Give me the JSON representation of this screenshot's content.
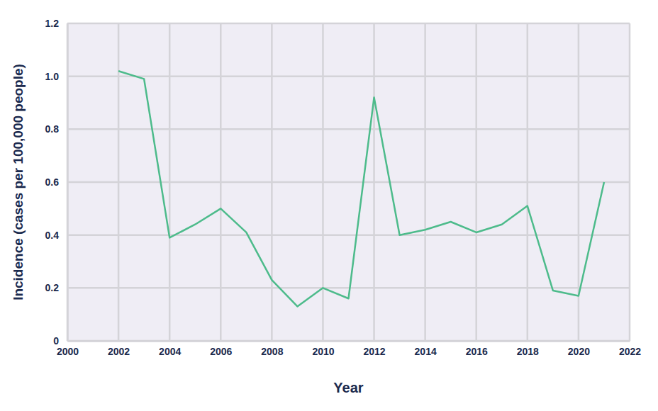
{
  "chart_data": {
    "type": "line",
    "xlabel": "Year",
    "ylabel": "Incidence (cases per 100,000 people)",
    "x": [
      2002,
      2003,
      2004,
      2005,
      2006,
      2007,
      2008,
      2009,
      2010,
      2011,
      2012,
      2013,
      2014,
      2015,
      2016,
      2017,
      2018,
      2019,
      2020,
      2021
    ],
    "values": [
      1.02,
      0.99,
      0.39,
      0.44,
      0.5,
      0.41,
      0.23,
      0.13,
      0.2,
      0.16,
      0.92,
      0.4,
      0.42,
      0.45,
      0.41,
      0.44,
      0.51,
      0.19,
      0.17,
      0.6
    ],
    "color": "#4dbb8b",
    "xlim": [
      2000,
      2022
    ],
    "xticks": [
      2000,
      2002,
      2004,
      2006,
      2008,
      2010,
      2012,
      2014,
      2016,
      2018,
      2020,
      2022
    ],
    "ylim": [
      0,
      1.2
    ],
    "yticks": [
      0,
      0.2,
      0.4,
      0.6,
      0.8,
      {
        "value": 1.0,
        "label": "1.0"
      },
      {
        "value": 1.2,
        "label": "1.2"
      }
    ],
    "grid": true
  }
}
